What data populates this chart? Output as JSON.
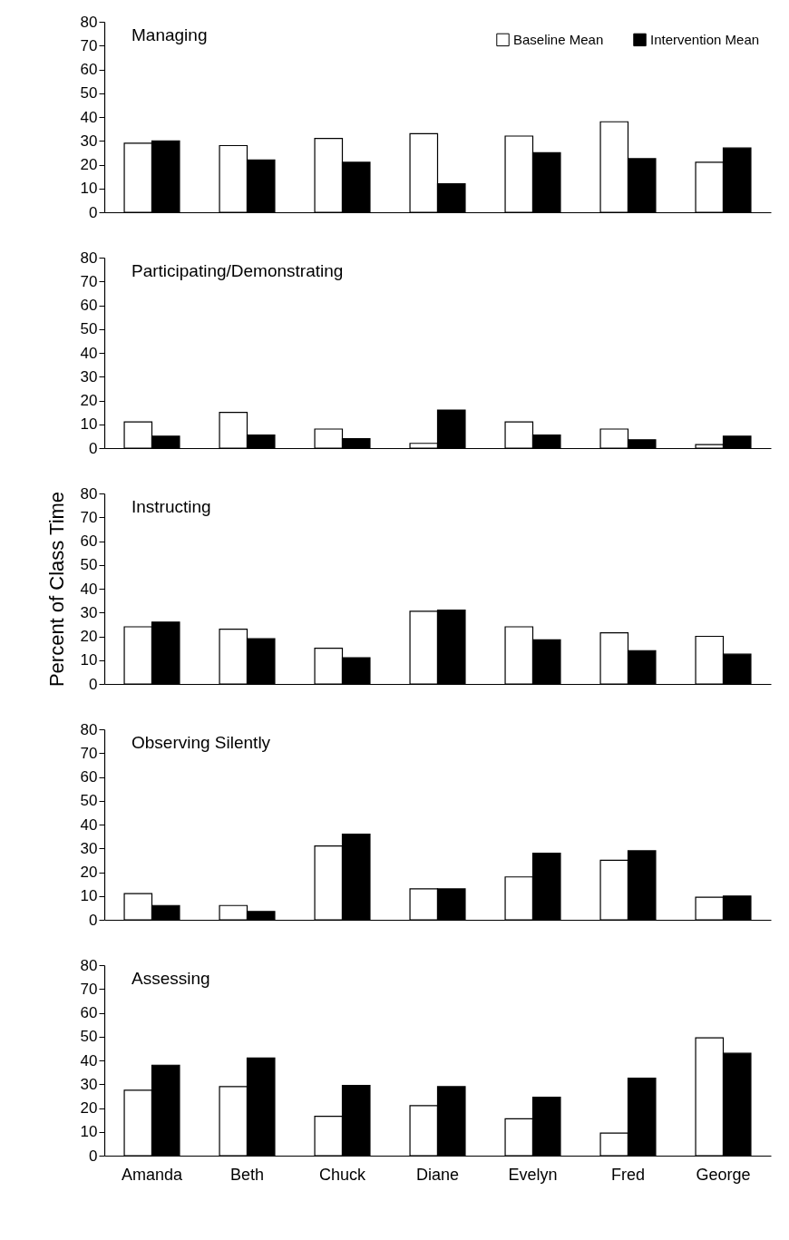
{
  "chart_data": [
    {
      "type": "bar",
      "title": "Managing",
      "categories": [
        null,
        null,
        null,
        null,
        null,
        null,
        null
      ],
      "series": [
        {
          "name": "Baseline Mean",
          "color": "#ffffff",
          "values": [
            29,
            28,
            31,
            33,
            32,
            38,
            21
          ]
        },
        {
          "name": "Intervention Mean",
          "color": "#000000",
          "values": [
            30,
            22,
            21,
            12,
            25,
            22.5,
            27
          ]
        }
      ],
      "ylim": [
        0,
        80
      ],
      "yticks": [
        0,
        10,
        20,
        30,
        40,
        50,
        60,
        70,
        80
      ],
      "grid": false,
      "legend": "top right",
      "tick_labels": "y"
    },
    {
      "type": "bar",
      "title": "Participating/Demonstrating",
      "categories": [
        null,
        null,
        null,
        null,
        null,
        null,
        null
      ],
      "series": [
        {
          "color": "#ffffff",
          "values": [
            11,
            15,
            8,
            2,
            11,
            8,
            1.5
          ]
        },
        {
          "color": "#000000",
          "values": [
            5,
            5.5,
            4,
            16,
            5.5,
            3.5,
            5
          ]
        }
      ],
      "ylim": [
        0,
        80
      ],
      "yticks": [
        0,
        10,
        20,
        30,
        40,
        50,
        60,
        70,
        80
      ],
      "grid": false,
      "legend": false,
      "tick_labels": "y"
    },
    {
      "type": "bar",
      "title": "Instructing",
      "ylabel": "Percent of Class Time",
      "categories": [
        null,
        null,
        null,
        null,
        null,
        null,
        null
      ],
      "series": [
        {
          "color": "#ffffff",
          "values": [
            24,
            23,
            15,
            30.5,
            24,
            21.5,
            20
          ]
        },
        {
          "color": "#000000",
          "values": [
            26,
            19,
            11,
            31,
            18.5,
            14,
            12.5
          ]
        }
      ],
      "ylim": [
        0,
        80
      ],
      "yticks": [
        0,
        10,
        20,
        30,
        40,
        50,
        60,
        70,
        80
      ],
      "grid": false,
      "legend": false,
      "tick_labels": "y"
    },
    {
      "type": "bar",
      "title": "Observing Silently",
      "categories": [
        null,
        null,
        null,
        null,
        null,
        null,
        null
      ],
      "series": [
        {
          "color": "#ffffff",
          "values": [
            11,
            6,
            31,
            13,
            18,
            25,
            9.5
          ]
        },
        {
          "color": "#000000",
          "values": [
            6,
            3.5,
            36,
            13,
            28,
            29,
            10
          ]
        }
      ],
      "ylim": [
        0,
        80
      ],
      "yticks": [
        0,
        10,
        20,
        30,
        40,
        50,
        60,
        70,
        80
      ],
      "grid": false,
      "legend": false,
      "tick_labels": "y"
    },
    {
      "type": "bar",
      "title": "Assessing",
      "categories": [
        "Amanda",
        "Beth",
        "Chuck",
        "Diane",
        "Evelyn",
        "Fred",
        "George"
      ],
      "series": [
        {
          "color": "#ffffff",
          "values": [
            27.5,
            29,
            16.5,
            21,
            15.5,
            9.5,
            49.5
          ]
        },
        {
          "color": "#000000",
          "values": [
            38,
            41,
            29.5,
            29,
            24.5,
            32.5,
            43
          ]
        }
      ],
      "ylim": [
        0,
        80
      ],
      "yticks": [
        0,
        10,
        20,
        30,
        40,
        50,
        60,
        70,
        80
      ],
      "grid": false,
      "legend": false
    }
  ]
}
